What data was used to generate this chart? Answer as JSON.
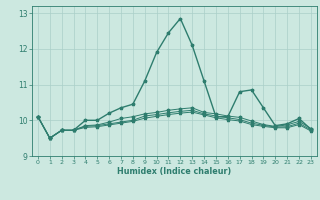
{
  "xlabel": "Humidex (Indice chaleur)",
  "bg_color": "#cce8e0",
  "line_color": "#2e7d6e",
  "grid_color": "#aacfc8",
  "xlim": [
    -0.5,
    23.5
  ],
  "ylim": [
    9.0,
    13.2
  ],
  "yticks": [
    9,
    10,
    11,
    12,
    13
  ],
  "xticks": [
    0,
    1,
    2,
    3,
    4,
    5,
    6,
    7,
    8,
    9,
    10,
    11,
    12,
    13,
    14,
    15,
    16,
    17,
    18,
    19,
    20,
    21,
    22,
    23
  ],
  "curves": [
    [
      10.1,
      9.5,
      9.72,
      9.72,
      10.0,
      10.0,
      10.2,
      10.35,
      10.45,
      11.1,
      11.9,
      12.45,
      12.85,
      12.1,
      11.1,
      10.1,
      10.1,
      10.8,
      10.85,
      10.35,
      9.85,
      9.9,
      10.05,
      9.75
    ],
    [
      10.1,
      9.5,
      9.72,
      9.72,
      9.85,
      9.87,
      9.95,
      10.05,
      10.1,
      10.18,
      10.22,
      10.28,
      10.32,
      10.35,
      10.22,
      10.18,
      10.12,
      10.08,
      9.98,
      9.88,
      9.83,
      9.87,
      9.97,
      9.77
    ],
    [
      10.1,
      9.5,
      9.72,
      9.72,
      9.83,
      9.85,
      9.9,
      9.95,
      10.0,
      10.12,
      10.16,
      10.21,
      10.25,
      10.28,
      10.18,
      10.12,
      10.07,
      10.02,
      9.92,
      9.86,
      9.81,
      9.82,
      9.92,
      9.73
    ],
    [
      10.1,
      9.5,
      9.72,
      9.72,
      9.8,
      9.82,
      9.87,
      9.92,
      9.97,
      10.06,
      10.11,
      10.16,
      10.2,
      10.23,
      10.15,
      10.07,
      10.02,
      9.98,
      9.88,
      9.83,
      9.79,
      9.79,
      9.88,
      9.7
    ]
  ]
}
